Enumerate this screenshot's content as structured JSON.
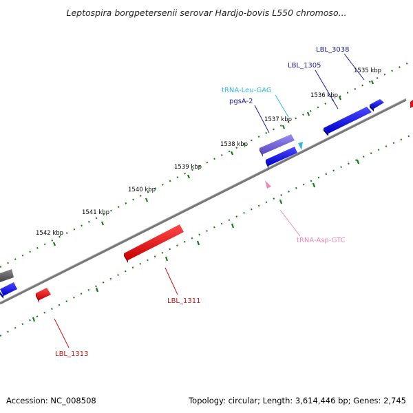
{
  "map": {
    "title": "Leptospira borgpetersenii serovar Hardjo-bovis L550 chromoso...",
    "accession": "Accession: NC_008508",
    "summary": "Topology: circular; Length: 3,614,446 bp; Genes: 2,745"
  },
  "ticks": [
    "1535 kbp",
    "1536 kbp",
    "1537 kbp",
    "1538 kbp",
    "1539 kbp",
    "1540 kbp",
    "1541 kbp",
    "1542 kbp"
  ],
  "genes": [
    {
      "id": "lbl-3038",
      "label": "LBL_3038",
      "color": "#1a1aa0"
    },
    {
      "id": "lbl-1305",
      "label": "LBL_1305",
      "color": "#1a1aa0"
    },
    {
      "id": "trna-leu-gag",
      "label": "tRNA-Leu-GAG",
      "color": "#33bbdd"
    },
    {
      "id": "pgsa-2",
      "label": "pgsA-2",
      "color": "#1a1aa0"
    },
    {
      "id": "trna-asp-gtc",
      "label": "tRNA-Asp-GTC",
      "color": "#ee88bb"
    },
    {
      "id": "lbl-1311",
      "label": "LBL_1311",
      "color": "#cc1111"
    },
    {
      "id": "lbl-1313",
      "label": "LBL_1313",
      "color": "#cc1111"
    }
  ],
  "colors": {
    "forward_gene": "#1010e0",
    "reverse_gene": "#ee1111",
    "pseudo_gene": "#7060d0",
    "other_gene": "#666666",
    "backbone": "#888888",
    "tick": "#1a7a1a"
  }
}
